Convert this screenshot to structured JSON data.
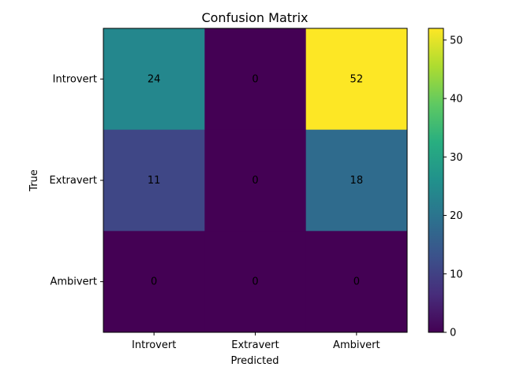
{
  "chart_data": {
    "type": "heatmap",
    "title": "Confusion Matrix",
    "xlabel": "Predicted",
    "ylabel": "True",
    "x_categories": [
      "Introvert",
      "Extravert",
      "Ambivert"
    ],
    "y_categories": [
      "Introvert",
      "Extravert",
      "Ambivert"
    ],
    "values": [
      [
        24,
        0,
        52
      ],
      [
        11,
        0,
        18
      ],
      [
        0,
        0,
        0
      ]
    ],
    "colormap": "viridis",
    "vmin": 0,
    "vmax": 52,
    "colorbar_ticks": [
      0,
      10,
      20,
      30,
      40,
      50
    ],
    "grid": false,
    "colorbar_placement": "right"
  }
}
